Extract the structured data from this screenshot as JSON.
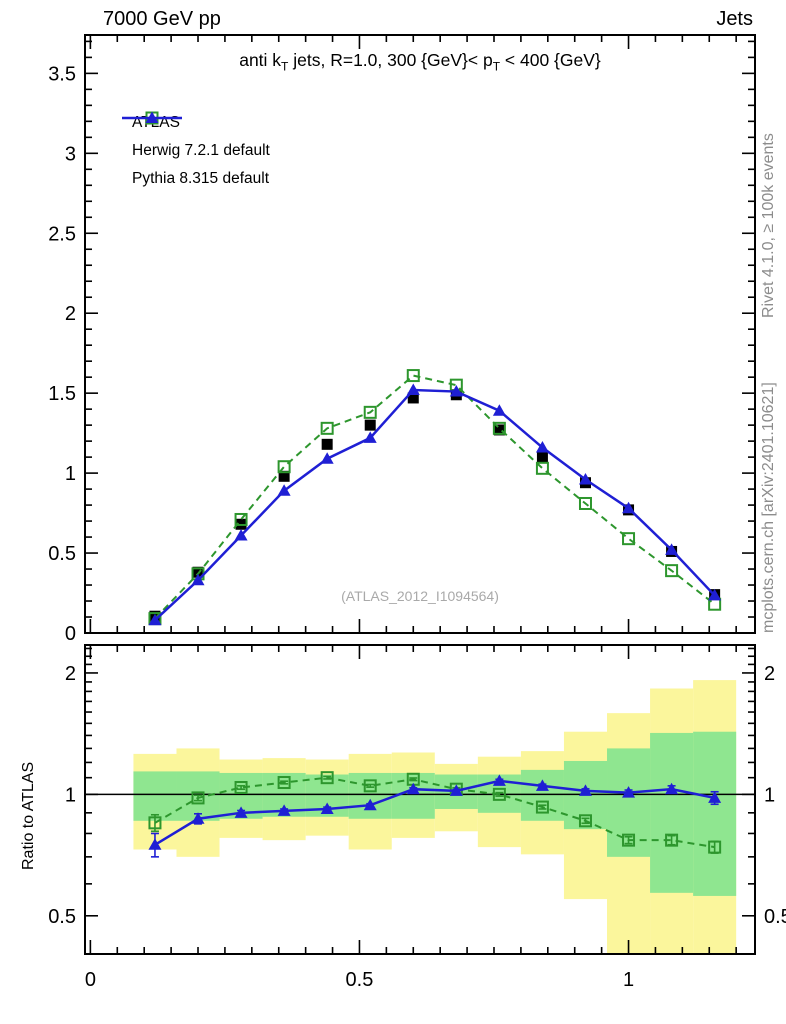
{
  "page": {
    "header_left": "7000 GeV pp",
    "header_right": "Jets",
    "watermark": "(ATLAS_2012_I1094564)",
    "side_text_top": "Rivet 4.1.0, ≥ 100k events",
    "side_text_bottom": "mcplots.cern.ch [arXiv:2401.10621]",
    "ratio_ylabel": "Ratio to ATLAS"
  },
  "title_segments": [
    {
      "text": "anti k"
    },
    {
      "sub": "T"
    },
    {
      "text": " jets, R=1.0,  300 {GeV}< p"
    },
    {
      "sub": "T"
    },
    {
      "text": " < 400 {GeV}"
    }
  ],
  "legend": [
    {
      "id": "atlas",
      "label": "ATLAS"
    },
    {
      "id": "herwig",
      "label": "Herwig 7.2.1 default"
    },
    {
      "id": "pythia",
      "label": "Pythia 8.315 default"
    }
  ],
  "colors": {
    "atlas": "#000000",
    "herwig": "#2d962d",
    "pythia": "#1f1fd4",
    "band_yellow": "#fbf69c",
    "band_green": "#8fe690",
    "gray_text": "#8c8c8c",
    "watermark": "#a9a9a9"
  },
  "chart_data": {
    "type": "line",
    "title": "anti kT jets, R=1.0, 300 {GeV} < pT < 400 {GeV}",
    "x": [
      0.12,
      0.2,
      0.28,
      0.36,
      0.44,
      0.52,
      0.6,
      0.68,
      0.76,
      0.84,
      0.92,
      1.0,
      1.08,
      1.16
    ],
    "bin_edges": [
      0.08,
      0.16,
      0.24,
      0.32,
      0.4,
      0.48,
      0.56,
      0.64,
      0.72,
      0.8,
      0.88,
      0.96,
      1.04,
      1.12,
      1.2
    ],
    "main_axis": {
      "ylim": [
        0,
        3.74
      ],
      "yticks": [
        0,
        0.5,
        1,
        1.5,
        2,
        2.5,
        3,
        3.5
      ],
      "y_minor_step": 0.1,
      "xlim": [
        -0.01,
        1.235
      ],
      "xticks": [
        0,
        0.5,
        1
      ],
      "x_minor_step": 0.05,
      "grid": false,
      "legend_position": "top-left"
    },
    "series": [
      {
        "name": "ATLAS",
        "style": "markers-only",
        "marker": "filled-square",
        "values": [
          0.105,
          0.38,
          0.68,
          0.98,
          1.18,
          1.3,
          1.47,
          1.49,
          1.27,
          1.1,
          0.94,
          0.77,
          0.51,
          0.24
        ]
      },
      {
        "name": "Herwig 7.2.1 default",
        "style": "dashed-line",
        "marker": "open-square",
        "values": [
          0.09,
          0.37,
          0.71,
          1.04,
          1.28,
          1.38,
          1.61,
          1.55,
          1.28,
          1.03,
          0.81,
          0.59,
          0.39,
          0.18
        ]
      },
      {
        "name": "Pythia 8.315 default",
        "style": "solid-line",
        "marker": "filled-triangle",
        "values": [
          0.08,
          0.33,
          0.61,
          0.89,
          1.09,
          1.22,
          1.52,
          1.51,
          1.39,
          1.16,
          0.96,
          0.78,
          0.52,
          0.235
        ]
      }
    ],
    "ratio_panel": {
      "ylabel": "Ratio to ATLAS",
      "yscale": "log",
      "ylim": [
        0.402,
        2.346
      ],
      "yticks": [
        0.5,
        1,
        2
      ],
      "y_minor_ticks": [
        0.4,
        0.5,
        0.6,
        0.7,
        0.8,
        0.9,
        1.0,
        1.1,
        1.2,
        1.3,
        1.4,
        1.5,
        1.6,
        1.7,
        1.8,
        1.9,
        2.0,
        2.1,
        2.2,
        2.3
      ],
      "xtick_labels": [
        "0",
        "0.5",
        "1"
      ],
      "reference_line": 1.0,
      "herwig_ratio": [
        0.85,
        0.98,
        1.04,
        1.07,
        1.1,
        1.05,
        1.09,
        1.03,
        1.0,
        0.93,
        0.86,
        0.77,
        0.77,
        0.74
      ],
      "herwig_ratio_err": [
        0.04,
        0.015,
        0.01,
        0.008,
        0.008,
        0.008,
        0.008,
        0.008,
        0.01,
        0.01,
        0.012,
        0.015,
        0.02,
        0.025
      ],
      "pythia_ratio": [
        0.75,
        0.87,
        0.9,
        0.91,
        0.92,
        0.94,
        1.03,
        1.02,
        1.08,
        1.05,
        1.02,
        1.01,
        1.03,
        0.98
      ],
      "pythia_ratio_err": [
        0.05,
        0.025,
        0.012,
        0.01,
        0.01,
        0.008,
        0.008,
        0.008,
        0.01,
        0.01,
        0.012,
        0.015,
        0.02,
        0.035
      ],
      "band_yellow_lo": [
        0.73,
        0.7,
        0.78,
        0.77,
        0.79,
        0.73,
        0.78,
        0.81,
        0.74,
        0.71,
        0.55,
        0.39,
        0.39,
        0.39
      ],
      "band_yellow_hi": [
        1.26,
        1.3,
        1.22,
        1.23,
        1.22,
        1.26,
        1.27,
        1.19,
        1.24,
        1.28,
        1.43,
        1.59,
        1.83,
        1.92
      ],
      "band_green_lo": [
        0.86,
        0.86,
        0.87,
        0.88,
        0.88,
        0.87,
        0.87,
        0.92,
        0.9,
        0.86,
        0.82,
        0.7,
        0.57,
        0.56
      ],
      "band_green_hi": [
        1.14,
        1.14,
        1.13,
        1.13,
        1.12,
        1.13,
        1.13,
        1.12,
        1.12,
        1.15,
        1.21,
        1.3,
        1.42,
        1.43
      ]
    }
  }
}
